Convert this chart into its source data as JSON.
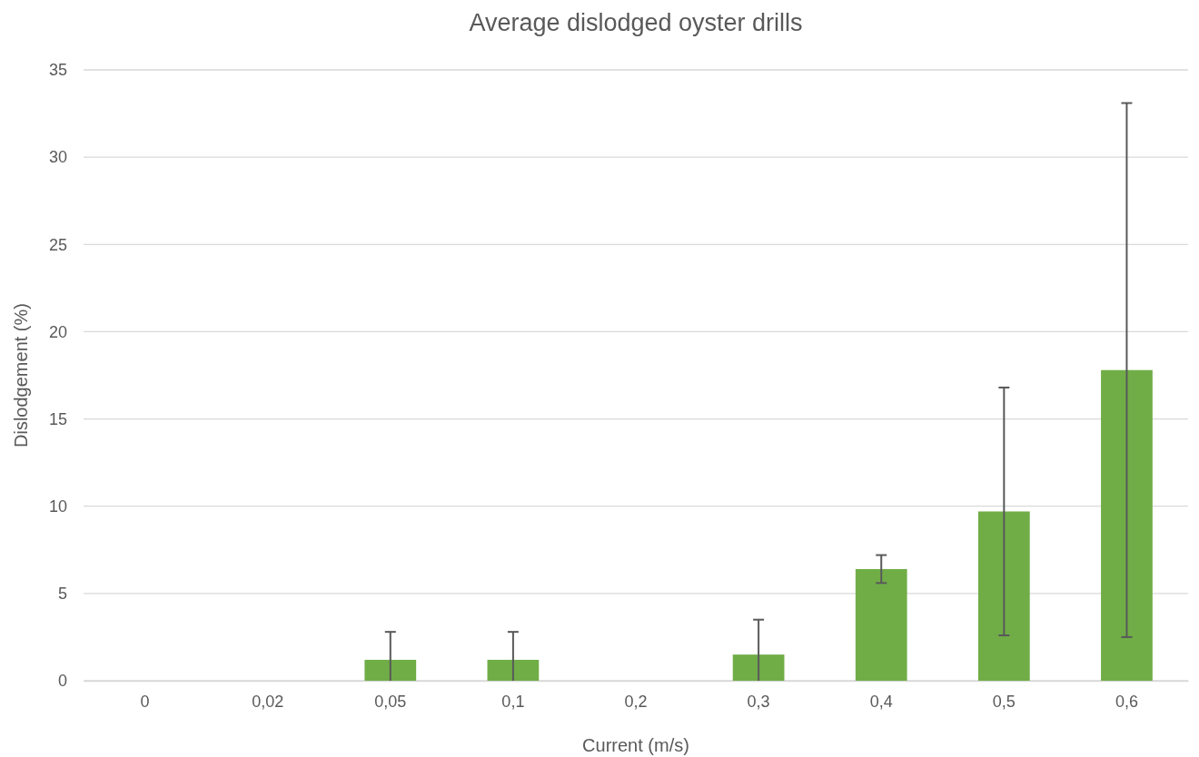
{
  "chart_data": {
    "type": "bar",
    "title": "Average dislodged oyster drills",
    "xlabel": "Current (m/s)",
    "ylabel": "Dislodgement (%)",
    "categories": [
      "0",
      "0,02",
      "0,05",
      "0,1",
      "0,2",
      "0,3",
      "0,4",
      "0,5",
      "0,6"
    ],
    "values": [
      0,
      0,
      1.2,
      1.2,
      0,
      1.5,
      6.4,
      9.7,
      17.8
    ],
    "errors": [
      null,
      null,
      [
        0,
        2.8
      ],
      [
        0,
        2.8
      ],
      null,
      [
        0,
        3.5
      ],
      0.8,
      7.1,
      15.3
    ],
    "color": "#70ad47",
    "ylim": [
      0,
      35
    ],
    "yticks": [
      0,
      5,
      10,
      15,
      20,
      25,
      30,
      35
    ],
    "grid": "y"
  }
}
